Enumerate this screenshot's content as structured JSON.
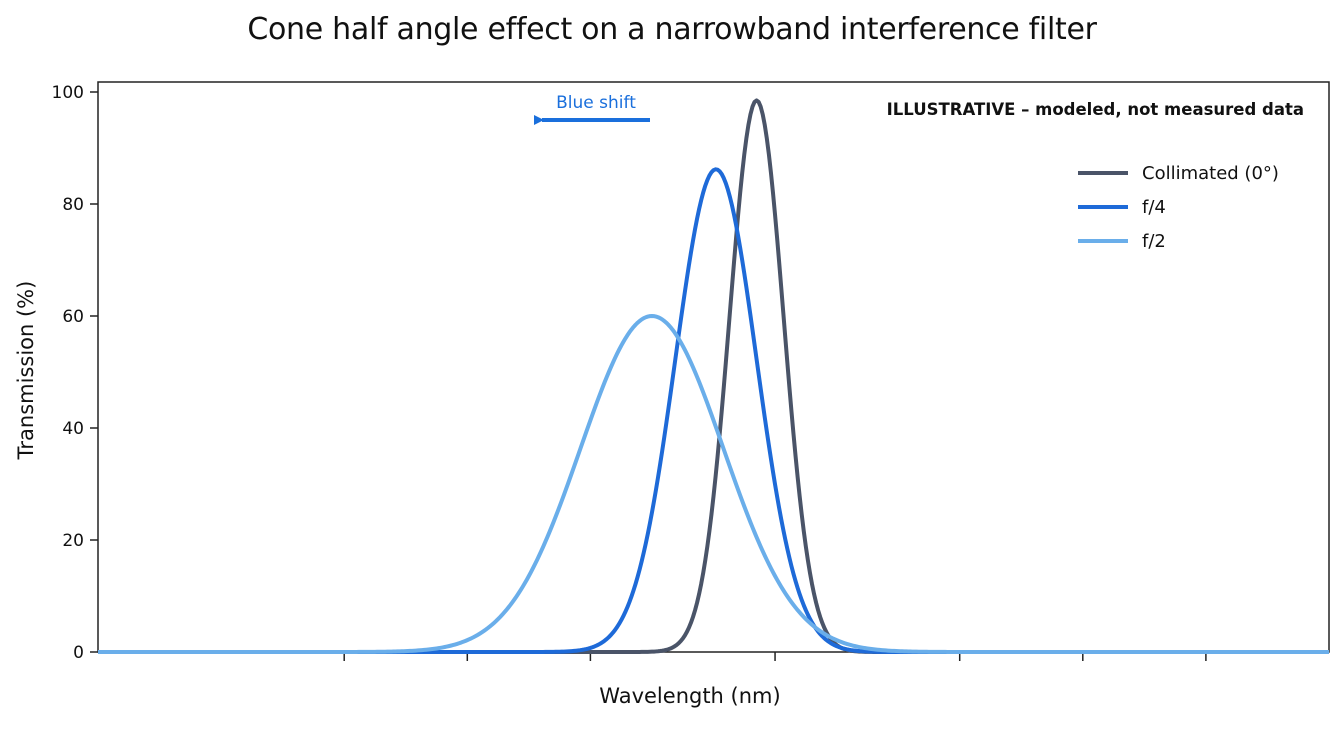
{
  "chart_data": {
    "type": "line",
    "title": "Cone half angle effect on a narrowband interference filter",
    "xlabel": "Wavelength (nm)",
    "ylabel": "Transmission (%)",
    "xlim": [
      0,
      10
    ],
    "ylim": [
      0,
      100
    ],
    "yticks": [
      0,
      20,
      40,
      60,
      80,
      100
    ],
    "xticks": [
      2,
      3,
      4,
      5.5,
      7,
      8,
      9
    ],
    "grid": false,
    "legend_position": "top-right",
    "note": "ILLUSTRATIVE – modeled, not measured data",
    "annotation": {
      "text": "Blue shift",
      "direction": "left",
      "color": "#1a6fdc"
    },
    "series": [
      {
        "name": "Collimated (0°)",
        "color": "#4a5468",
        "peak_x": 5.35,
        "peak_y": 98.5,
        "sigma": 0.22
      },
      {
        "name": "f/4",
        "color": "#1e6ad8",
        "peak_x": 5.02,
        "peak_y": 86.2,
        "sigma": 0.33
      },
      {
        "name": "f/2",
        "color": "#6aaeea",
        "peak_x": 4.5,
        "peak_y": 60,
        "sigma": 0.58
      }
    ]
  }
}
